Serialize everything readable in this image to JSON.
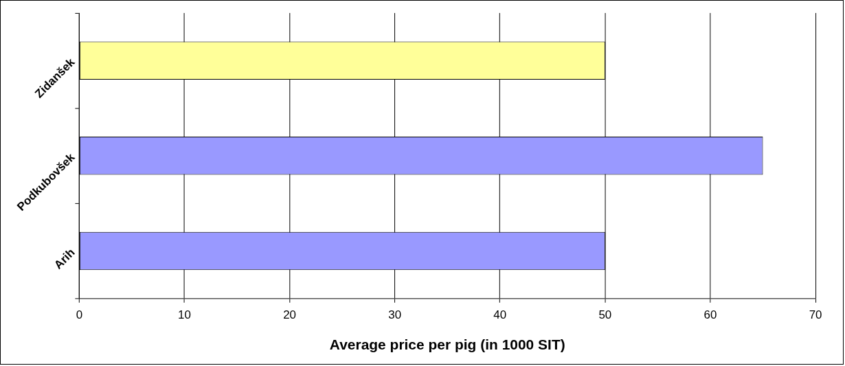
{
  "chart_data": {
    "type": "bar",
    "orientation": "horizontal",
    "xlabel": "Average price per pig (in 1000 SIT)",
    "categories": [
      "Zidanšek",
      "Podkubovšek",
      "Arih"
    ],
    "values": [
      50,
      65,
      50
    ],
    "colors": [
      "#ffff99",
      "#9999ff",
      "#9999ff"
    ],
    "xlim": [
      0,
      70
    ],
    "xticks": [
      0,
      10,
      20,
      30,
      40,
      50,
      60,
      70
    ],
    "grid": "x",
    "legend": false
  }
}
